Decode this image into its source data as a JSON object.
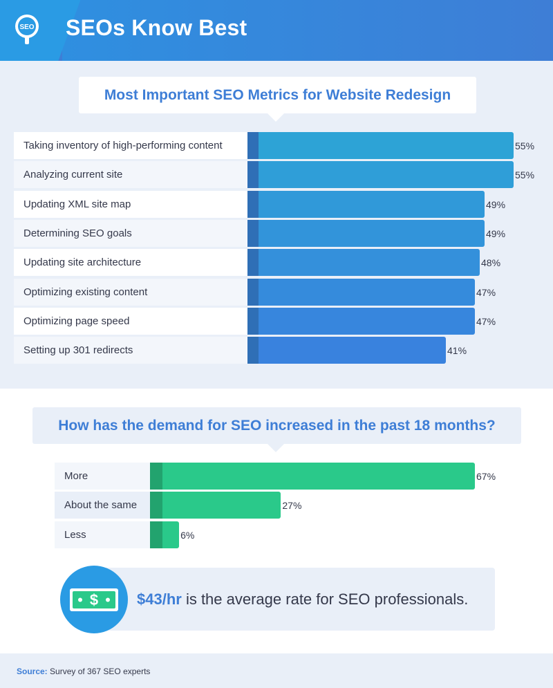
{
  "header": {
    "title": "SEOs Know Best",
    "logo_text": "SEO",
    "logo_icon": "magnifier-icon"
  },
  "chart_data": [
    {
      "type": "bar",
      "orientation": "horizontal",
      "title": "Most Important SEO Metrics for Website Redesign",
      "categories": [
        "Taking inventory of high-performing content",
        "Analyzing current site",
        "Updating XML site map",
        "Determining SEO goals",
        "Updating site architecture",
        "Optimizing existing content",
        "Optimizing page speed",
        "Setting up 301 redirects"
      ],
      "values": [
        55,
        55,
        49,
        49,
        48,
        47,
        47,
        41
      ],
      "value_labels": [
        "55%",
        "55%",
        "49%",
        "49%",
        "48%",
        "47%",
        "47%",
        "41%"
      ],
      "bar_colors": [
        "#2da3d6",
        "#2f9ed8",
        "#3099d9",
        "#3294da",
        "#3490db",
        "#358bdc",
        "#3786dd",
        "#3982de"
      ],
      "cap_color": "#2f6fb6",
      "xlim": [
        0,
        55
      ]
    },
    {
      "type": "bar",
      "orientation": "horizontal",
      "title": "How has the demand for SEO increased in the past 18 months?",
      "categories": [
        "More",
        "About the same",
        "Less"
      ],
      "values": [
        67,
        27,
        6
      ],
      "value_labels": [
        "67%",
        "27%",
        "6%"
      ],
      "bar_color": "#2ac98a",
      "cap_color": "#22a36e",
      "xlim": [
        0,
        67
      ]
    }
  ],
  "rate": {
    "highlight": "$43/hr",
    "text": " is the average rate for SEO professionals.",
    "icon": "dollar-bill-icon"
  },
  "footer": {
    "source_label": "Source:",
    "source_text": " Survey of 367 SEO experts"
  }
}
